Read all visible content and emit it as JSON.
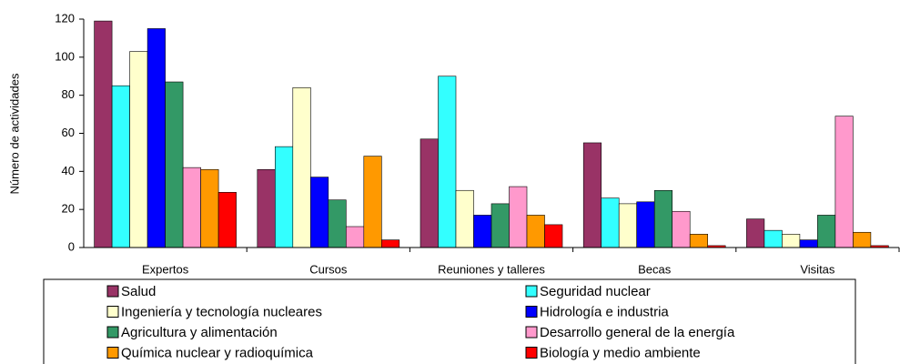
{
  "chart_data": {
    "type": "bar",
    "categories": [
      "Expertos",
      "Cursos",
      "Reuniones y talleres",
      "Becas",
      "Visitas"
    ],
    "y_label": "Número de actividades",
    "ylim": [
      0,
      120
    ],
    "yticks": [
      0,
      20,
      40,
      60,
      80,
      100,
      120
    ],
    "grid": false,
    "legend": "bottom",
    "series": [
      {
        "name": "Salud",
        "color": "#993366",
        "values": [
          119,
          41,
          57,
          55,
          15
        ]
      },
      {
        "name": "Seguridad nuclear",
        "color": "#33ffff",
        "values": [
          85,
          53,
          90,
          26,
          9
        ]
      },
      {
        "name": "Ingeniería y tecnología nucleares",
        "color": "#ffffcc",
        "values": [
          103,
          84,
          30,
          23,
          7
        ]
      },
      {
        "name": "Hidrología e industria",
        "color": "#0000ff",
        "values": [
          115,
          37,
          17,
          24,
          4
        ]
      },
      {
        "name": "Agricultura y alimentación",
        "color": "#339966",
        "values": [
          87,
          25,
          23,
          30,
          17
        ]
      },
      {
        "name": "Desarrollo general de la energía",
        "color": "#ff99cc",
        "values": [
          42,
          11,
          32,
          19,
          69
        ]
      },
      {
        "name": "Química nuclear y radioquímica",
        "color": "#ff9900",
        "values": [
          41,
          48,
          17,
          7,
          8
        ]
      },
      {
        "name": "Biología y medio ambiente",
        "color": "#ff0000",
        "values": [
          29,
          4,
          12,
          1,
          1
        ]
      }
    ]
  }
}
